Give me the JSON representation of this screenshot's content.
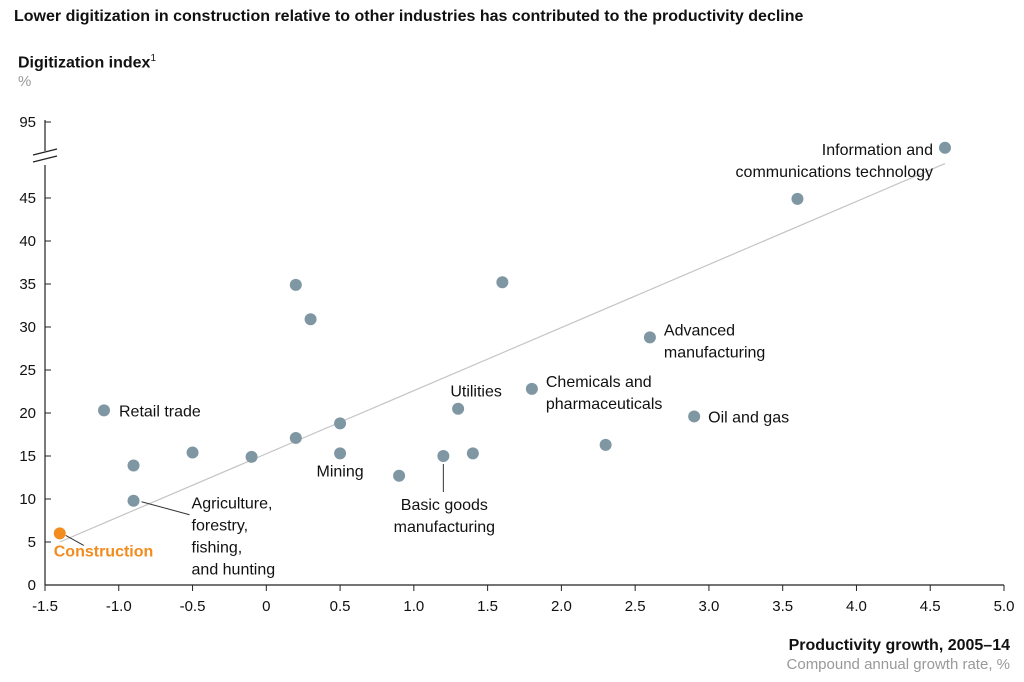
{
  "chart_data": {
    "type": "scatter",
    "title": "Lower digitization in construction relative to other industries has contributed to the productivity decline",
    "ylabel": "Digitization index",
    "ylabel_footnote": "1",
    "yunit": "%",
    "xlabel": "Productivity growth, 2005–14",
    "xunit": "Compound annual growth rate, %",
    "xlim": [
      -1.5,
      5.0
    ],
    "xticks": [
      -1.5,
      -1.0,
      -0.5,
      0,
      0.5,
      1.0,
      1.5,
      2.0,
      2.5,
      3.0,
      3.5,
      4.0,
      4.5,
      5.0
    ],
    "xtick_labels": [
      "-1.5",
      "-1.0",
      "-0.5",
      "0",
      "0.5",
      "1.0",
      "1.5",
      "2.0",
      "2.5",
      "3.0",
      "3.5",
      "4.0",
      "4.5",
      "5.0"
    ],
    "yticks": [
      0,
      5,
      10,
      15,
      20,
      25,
      30,
      35,
      40,
      45,
      95
    ],
    "ytick_labels": [
      "0",
      "5",
      "10",
      "15",
      "20",
      "25",
      "30",
      "35",
      "40",
      "45",
      "95"
    ],
    "y_axis_break": [
      45,
      95
    ],
    "grid": false,
    "trendline": {
      "x": [
        -1.4,
        4.6
      ],
      "y": [
        5.0,
        49.0
      ]
    },
    "points": [
      {
        "x": -1.4,
        "y": 6.0,
        "label": "Construction",
        "highlight": true
      },
      {
        "x": -1.1,
        "y": 20.3,
        "label": "Retail trade"
      },
      {
        "x": -0.9,
        "y": 13.9,
        "label": ""
      },
      {
        "x": -0.9,
        "y": 9.8,
        "label": "Agriculture,\nforestry,\nfishing,\nand hunting"
      },
      {
        "x": -0.5,
        "y": 15.4,
        "label": ""
      },
      {
        "x": -0.1,
        "y": 14.9,
        "label": ""
      },
      {
        "x": 0.2,
        "y": 17.1,
        "label": ""
      },
      {
        "x": 0.2,
        "y": 34.9,
        "label": ""
      },
      {
        "x": 0.3,
        "y": 30.9,
        "label": ""
      },
      {
        "x": 0.5,
        "y": 18.8,
        "label": ""
      },
      {
        "x": 0.5,
        "y": 15.3,
        "label": "Mining"
      },
      {
        "x": 0.9,
        "y": 12.7,
        "label": ""
      },
      {
        "x": 1.2,
        "y": 15.0,
        "label": "Basic goods\nmanufacturing"
      },
      {
        "x": 1.3,
        "y": 20.5,
        "label": "Utilities"
      },
      {
        "x": 1.4,
        "y": 15.3,
        "label": ""
      },
      {
        "x": 1.6,
        "y": 35.2,
        "label": ""
      },
      {
        "x": 1.8,
        "y": 22.8,
        "label": "Chemicals and\npharmaceuticals"
      },
      {
        "x": 2.3,
        "y": 16.3,
        "label": ""
      },
      {
        "x": 2.6,
        "y": 28.8,
        "label": "Advanced\nmanufacturing"
      },
      {
        "x": 2.9,
        "y": 19.6,
        "label": "Oil and gas"
      },
      {
        "x": 3.6,
        "y": 44.9,
        "label": ""
      },
      {
        "x": 4.6,
        "y": 92.0,
        "label": "Information and\ncommunications technology"
      }
    ],
    "colors": {
      "point": "#7f96a3",
      "highlight": "#f28c1e",
      "trend": "#c4c4c4",
      "axis": "#222222"
    }
  }
}
